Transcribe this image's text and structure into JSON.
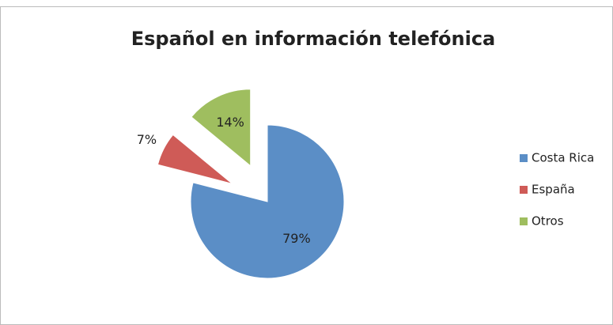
{
  "chart_data": {
    "type": "pie",
    "title": "Español en información telefónica",
    "categories": [
      "Costa Rica",
      "España",
      "Otros"
    ],
    "values": [
      79,
      7,
      14
    ],
    "value_labels": [
      "79%",
      "7%",
      "14%"
    ],
    "colors": [
      "#5b8ec6",
      "#cf5b57",
      "#9fbe5f"
    ],
    "exploded": [
      false,
      true,
      true
    ],
    "legend": "right"
  }
}
